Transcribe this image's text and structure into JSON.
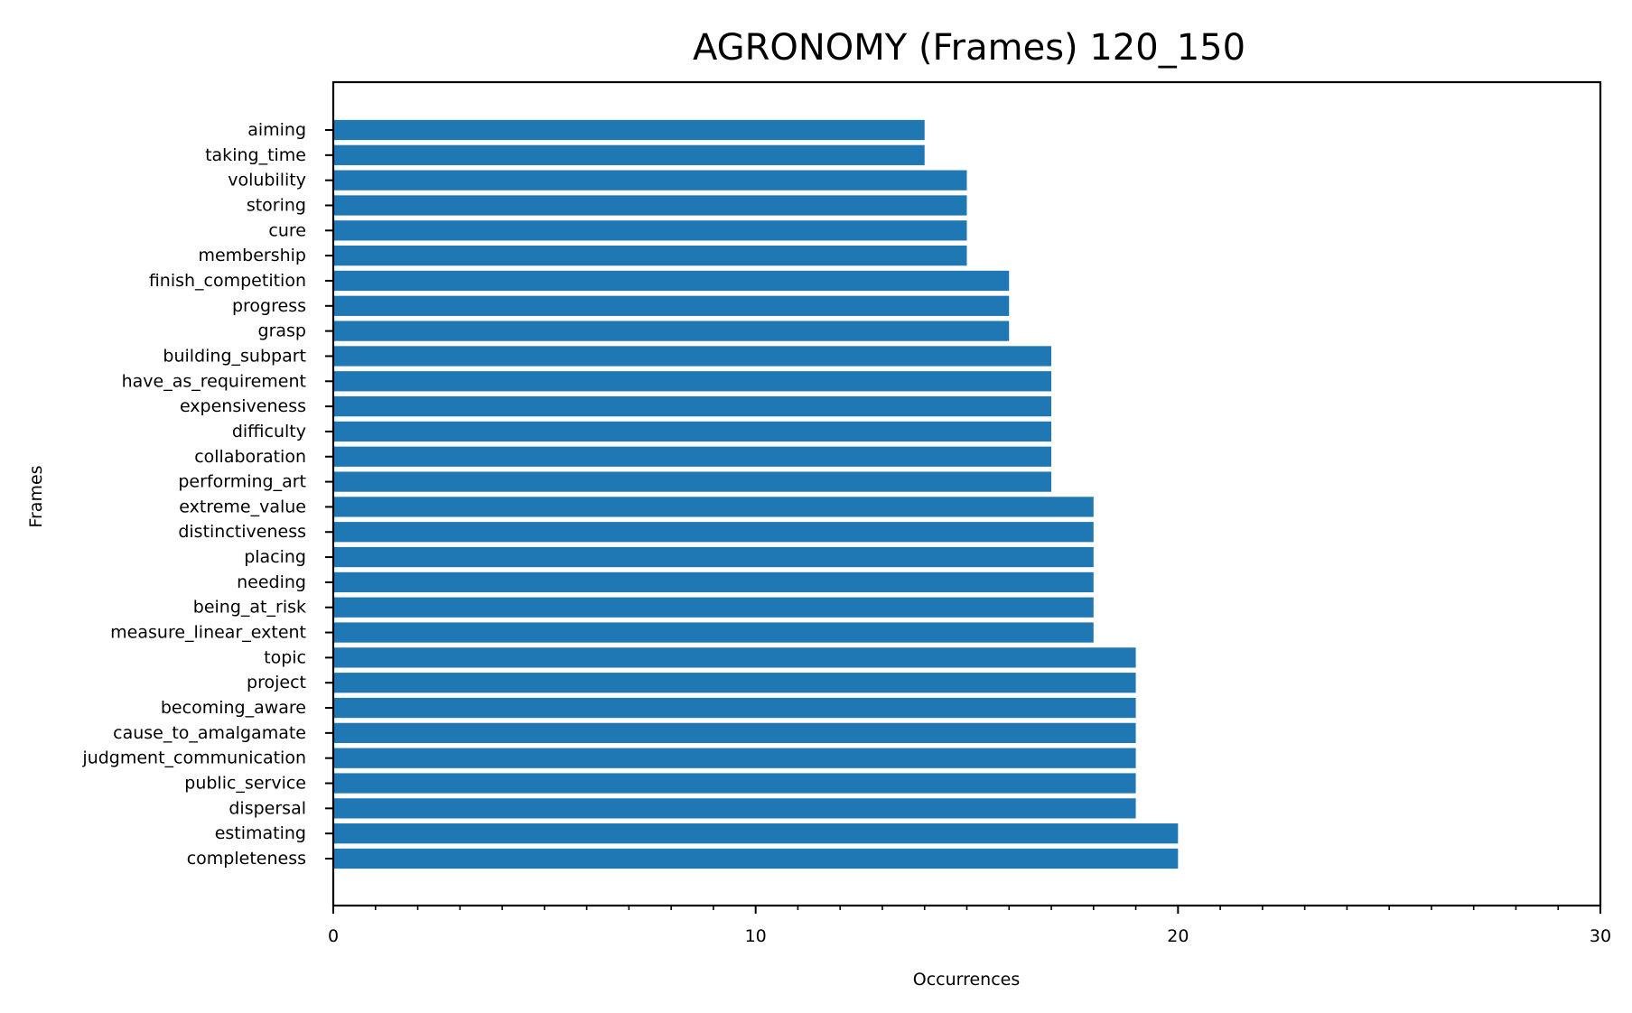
{
  "chart_data": {
    "type": "bar",
    "orientation": "horizontal",
    "title": "AGRONOMY (Frames) 120_150",
    "xlabel": "Occurrences",
    "ylabel": "Frames",
    "xlim": [
      0,
      30
    ],
    "xticks": [
      0,
      10,
      20,
      30
    ],
    "grid": false,
    "bar_color": "#1f77b4",
    "categories": [
      "aiming",
      "taking_time",
      "volubility",
      "storing",
      "cure",
      "membership",
      "finish_competition",
      "progress",
      "grasp",
      "building_subpart",
      "have_as_requirement",
      "expensiveness",
      "difficulty",
      "collaboration",
      "performing_art",
      "extreme_value",
      "distinctiveness",
      "placing",
      "needing",
      "being_at_risk",
      "measure_linear_extent",
      "topic",
      "project",
      "becoming_aware",
      "cause_to_amalgamate",
      "judgment_communication",
      "public_service",
      "dispersal",
      "estimating",
      "completeness"
    ],
    "values": [
      14,
      14,
      15,
      15,
      15,
      15,
      16,
      16,
      16,
      17,
      17,
      17,
      17,
      17,
      17,
      18,
      18,
      18,
      18,
      18,
      18,
      19,
      19,
      19,
      19,
      19,
      19,
      19,
      20,
      20
    ]
  }
}
